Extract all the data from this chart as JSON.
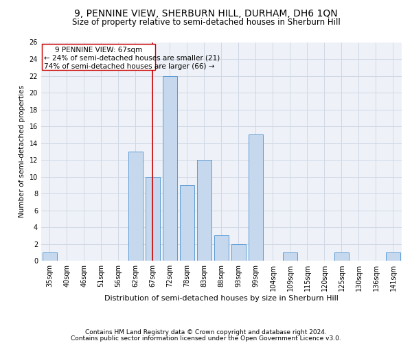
{
  "title1": "9, PENNINE VIEW, SHERBURN HILL, DURHAM, DH6 1QN",
  "title2": "Size of property relative to semi-detached houses in Sherburn Hill",
  "xlabel": "Distribution of semi-detached houses by size in Sherburn Hill",
  "ylabel": "Number of semi-detached properties",
  "footer1": "Contains HM Land Registry data © Crown copyright and database right 2024.",
  "footer2": "Contains public sector information licensed under the Open Government Licence v3.0.",
  "categories": [
    "35sqm",
    "40sqm",
    "46sqm",
    "51sqm",
    "56sqm",
    "62sqm",
    "67sqm",
    "72sqm",
    "78sqm",
    "83sqm",
    "88sqm",
    "93sqm",
    "99sqm",
    "104sqm",
    "109sqm",
    "115sqm",
    "120sqm",
    "125sqm",
    "130sqm",
    "136sqm",
    "141sqm"
  ],
  "values": [
    1,
    0,
    0,
    0,
    0,
    13,
    10,
    22,
    9,
    12,
    3,
    2,
    15,
    0,
    1,
    0,
    0,
    1,
    0,
    0,
    1
  ],
  "highlight_idx": 6,
  "highlight_label": "9 PENNINE VIEW: 67sqm",
  "pct_smaller": 24,
  "pct_smaller_n": 21,
  "pct_larger": 74,
  "pct_larger_n": 66,
  "bar_color": "#c5d8ed",
  "bar_edge_color": "#5b9bd5",
  "highlight_line_color": "#cc0000",
  "box_edge_color": "#cc0000",
  "ylim": [
    0,
    26
  ],
  "yticks": [
    0,
    2,
    4,
    6,
    8,
    10,
    12,
    14,
    16,
    18,
    20,
    22,
    24,
    26
  ],
  "grid_color": "#d0d8e4",
  "bg_color": "#eef2f8",
  "title1_fontsize": 10,
  "title2_fontsize": 8.5,
  "xlabel_fontsize": 8,
  "ylabel_fontsize": 7.5,
  "tick_fontsize": 7,
  "annotation_fontsize": 7.5,
  "footer_fontsize": 6.5
}
